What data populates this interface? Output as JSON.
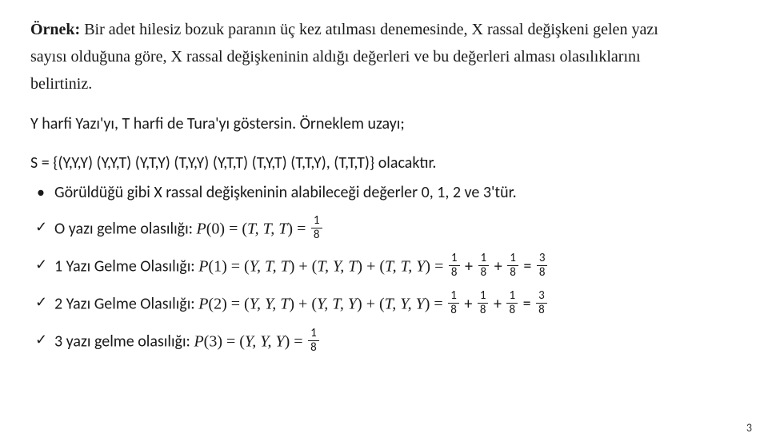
{
  "para1": {
    "ornek": "Örnek:",
    "rest1": " Bir adet hilesiz bozuk paranın üç kez atılması denemesinde, X rassal değişkeni gelen yazı",
    "line2": "sayısı olduğuna göre, X rassal değişkeninin  aldığı  değerleri ve bu değerleri alması olasılıklarını",
    "line3": "belirtiniz."
  },
  "line_harfi": "Y harfi Yazı'yı, T harfi de Tura'yı  göstersin.  Örneklem uzayı;",
  "line_S": "S = {(Y,Y,Y) (Y,Y,T) (Y,T,Y) (T,Y,Y) (Y,T,T) (T,Y,T) (T,T,Y), (T,T,T)} olacaktır.",
  "bullet_goruldu": "Görüldüğü gibi  X rassal  değişkeninin  alabileceği değerler  0, 1, 2 ve 3'tür.",
  "row0": {
    "prefix": "O yazı gelme olasılığı: ",
    "p": "P",
    "arg": "(0) = (",
    "tuple": "T, T, T",
    "close": ") =",
    "f_num": "1",
    "f_den": "8"
  },
  "row1": {
    "prefix": "1 Yazı Gelme Olasılığı: ",
    "p": "P",
    "arg": "(1) = (",
    "t1": "Y, T, T",
    "mid1": ") + (",
    "t2": "T, Y, T",
    "mid2": ") + (",
    "t3": "T, T, Y",
    "close": ") =",
    "f1n": "1",
    "f1d": "8",
    "plus1": "+",
    "f2n": "1",
    "f2d": "8",
    "plus2": "+",
    "f3n": "1",
    "f3d": "8",
    "eq": "=",
    "frn": "3",
    "frd": "8"
  },
  "row2": {
    "prefix": "2 Yazı Gelme Olasılığı: ",
    "p": "P",
    "arg": "(2) = (",
    "t1": "Y, Y, T",
    "mid1": ") + (",
    "t2": "Y, T, Y",
    "mid2": ") + (",
    "t3": "T, Y, Y",
    "close": ") =",
    "f1n": "1",
    "f1d": "8",
    "plus1": "+",
    "f2n": "1",
    "f2d": "8",
    "plus2": "+",
    "f3n": "1",
    "f3d": "8",
    "eq": "=",
    "frn": "3",
    "frd": "8"
  },
  "row3": {
    "prefix": "3 yazı gelme olasılığı: ",
    "p": "P",
    "arg": "(3) = (",
    "tuple": "Y, Y, Y",
    "close": ") =",
    "f_num": "1",
    "f_den": "8"
  },
  "pagenum": "3"
}
